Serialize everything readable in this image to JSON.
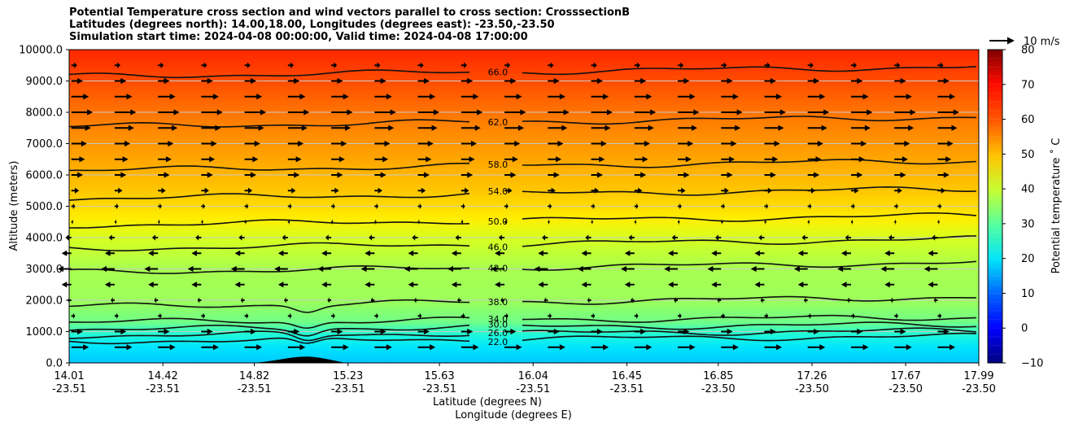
{
  "chart_data": {
    "type": "contour-cross-section",
    "title_lines": [
      "Potential Temperature cross section and wind vectors parallel to cross section: CrosssectionB",
      "Latitudes (degrees north): 14.00,18.00, Longitudes (degrees east): -23.50,-23.50",
      "Simulation start time: 2024-04-08 00:00:00, Valid time: 2024-04-08 17:00:00"
    ],
    "ylabel": "Altitude (meters)",
    "ylim": [
      0,
      10000
    ],
    "yticks": [
      "0.0",
      "1000.0",
      "2000.0",
      "3000.0",
      "4000.0",
      "5000.0",
      "6000.0",
      "7000.0",
      "8000.0",
      "9000.0",
      "10000.0"
    ],
    "xlabel_lat": "Latitude (degrees N)",
    "xlabel_lon": "Longitude (degrees E)",
    "xlim": [
      14.01,
      17.99
    ],
    "xticks": [
      {
        "lat": "14.01",
        "lon": "-23.51"
      },
      {
        "lat": "14.42",
        "lon": "-23.51"
      },
      {
        "lat": "14.82",
        "lon": "-23.51"
      },
      {
        "lat": "15.23",
        "lon": "-23.51"
      },
      {
        "lat": "15.63",
        "lon": "-23.51"
      },
      {
        "lat": "16.04",
        "lon": "-23.51"
      },
      {
        "lat": "16.45",
        "lon": "-23.51"
      },
      {
        "lat": "16.85",
        "lon": "-23.50"
      },
      {
        "lat": "17.26",
        "lon": "-23.50"
      },
      {
        "lat": "17.67",
        "lon": "-23.50"
      },
      {
        "lat": "17.99",
        "lon": "-23.50"
      }
    ],
    "colorbar": {
      "label": "Potential temperature ˚ C",
      "range": [
        -10,
        80
      ],
      "ticks": [
        "−10",
        "0",
        "10",
        "20",
        "30",
        "40",
        "50",
        "60",
        "70",
        "80"
      ],
      "colormap": "jet"
    },
    "contours": [
      {
        "label": "22.0",
        "alt": 770
      },
      {
        "label": "26.0",
        "alt": 950
      },
      {
        "label": "30.0",
        "alt": 1150
      },
      {
        "label": "34.0",
        "alt": 1380
      },
      {
        "label": "38.0",
        "alt": 1950
      },
      {
        "label": "42.0",
        "alt": 3050
      },
      {
        "label": "46.0",
        "alt": 3800
      },
      {
        "label": "50.0",
        "alt": 4550
      },
      {
        "label": "54.0",
        "alt": 5400
      },
      {
        "label": "58.0",
        "alt": 6300
      },
      {
        "label": "62.0",
        "alt": 7700
      },
      {
        "label": "66.0",
        "alt": 9300
      }
    ],
    "wind_reference": {
      "label": "10 m/s"
    },
    "wind_profile": [
      {
        "alt": 500,
        "speed": 9,
        "dir": 1
      },
      {
        "alt": 1000,
        "speed": 6,
        "dir": 1
      },
      {
        "alt": 1500,
        "speed": 2,
        "dir": 1
      },
      {
        "alt": 2000,
        "speed": 2,
        "dir": -1
      },
      {
        "alt": 2500,
        "speed": 5,
        "dir": -1
      },
      {
        "alt": 3000,
        "speed": 7,
        "dir": -1
      },
      {
        "alt": 3500,
        "speed": 5,
        "dir": -1
      },
      {
        "alt": 4000,
        "speed": 3,
        "dir": -1
      },
      {
        "alt": 4500,
        "speed": 1,
        "dir": 1
      },
      {
        "alt": 5000,
        "speed": 2,
        "dir": 1
      },
      {
        "alt": 5500,
        "speed": 4,
        "dir": 1
      },
      {
        "alt": 6000,
        "speed": 6,
        "dir": 1
      },
      {
        "alt": 6500,
        "speed": 7,
        "dir": 1
      },
      {
        "alt": 7000,
        "speed": 8,
        "dir": 1
      },
      {
        "alt": 7500,
        "speed": 10,
        "dir": 1
      },
      {
        "alt": 8000,
        "speed": 11,
        "dir": 1
      },
      {
        "alt": 8500,
        "speed": 9,
        "dir": 1
      },
      {
        "alt": 9000,
        "speed": 6,
        "dir": 1
      },
      {
        "alt": 9500,
        "speed": 3,
        "dir": 1
      }
    ],
    "terrain": {
      "lat_start": 14.82,
      "lat_end": 15.22,
      "peak_lat": 15.05,
      "peak_alt": 200
    }
  }
}
